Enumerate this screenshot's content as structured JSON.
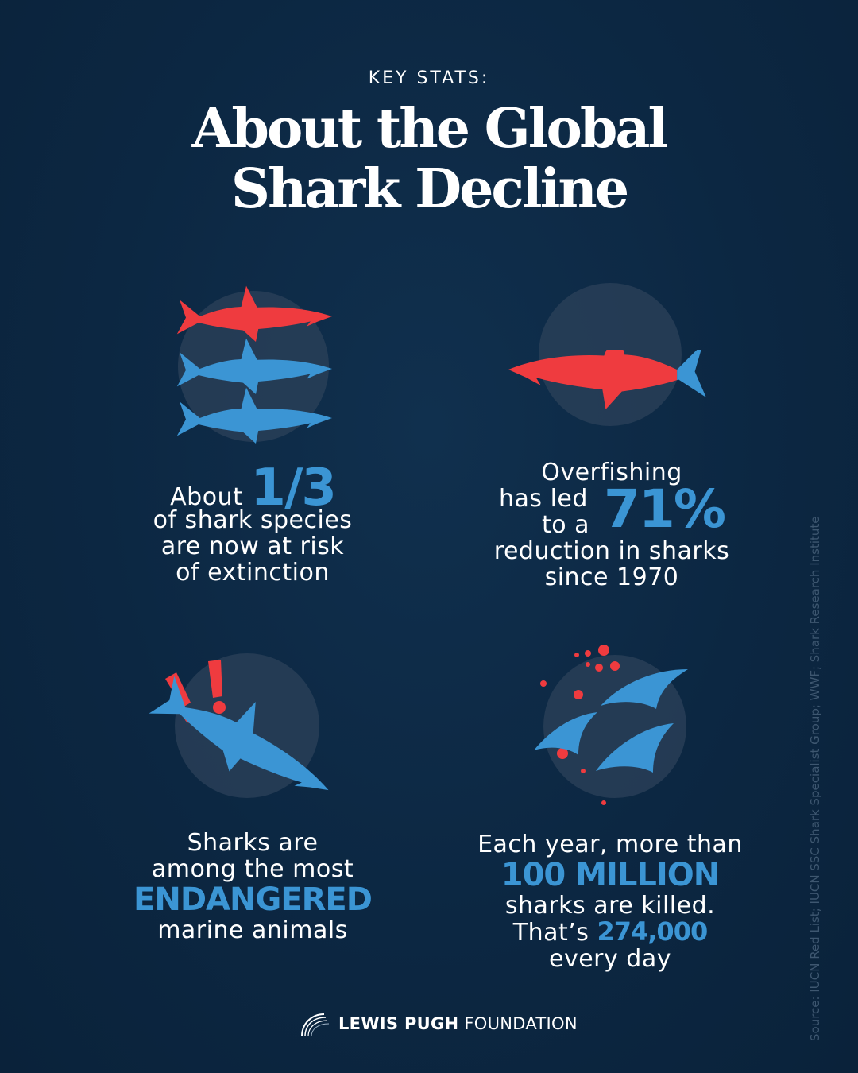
{
  "header": {
    "kicker": "KEY STATS:",
    "title_line1": "About the Global",
    "title_line2": "Shark Decline"
  },
  "stats": [
    {
      "pre": "About",
      "highlight": "1/3",
      "line2": "of shark species",
      "line3": "are now at risk",
      "line4": "of extinction"
    },
    {
      "line1": "Overfishing",
      "line2": "has led",
      "line3": "to a",
      "highlight": "71%",
      "line4": "reduction in sharks",
      "line5": "since 1970"
    },
    {
      "line1": "Sharks are",
      "line2": "among the most",
      "highlight": "ENDANGERED",
      "line3": "marine animals"
    },
    {
      "line1": "Each year, more than",
      "highlight": "100 MILLION",
      "line2": "sharks are killed.",
      "line3_pre": "That’s",
      "line3_highlight": "274,000",
      "line4": "every day"
    }
  ],
  "footer": {
    "logo_bold": "LEWIS PUGH",
    "logo_light": "FOUNDATION",
    "source": "Source: IUCN Red List; IUCN SSC Shark Specialist Group; WWF; Shark Research Institute"
  },
  "colors": {
    "background": "#0d2a45",
    "red": "#ef3b3f",
    "blue": "#3b95d4",
    "circle": "#2c425a"
  }
}
